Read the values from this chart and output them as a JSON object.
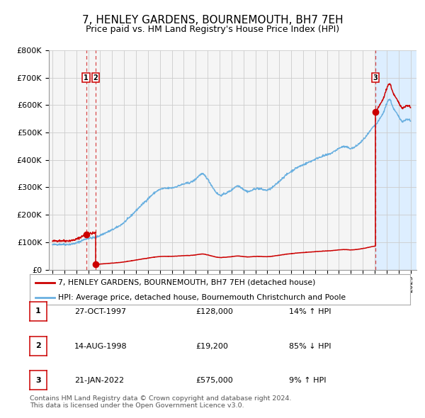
{
  "title": "7, HENLEY GARDENS, BOURNEMOUTH, BH7 7EH",
  "subtitle": "Price paid vs. HM Land Registry's House Price Index (HPI)",
  "title_fontsize": 11,
  "subtitle_fontsize": 9,
  "background_color": "#ffffff",
  "plot_bg_color": "#f5f5f5",
  "grid_color": "#cccccc",
  "ylim": [
    0,
    800000
  ],
  "yticks": [
    0,
    100000,
    200000,
    300000,
    400000,
    500000,
    600000,
    700000,
    800000
  ],
  "ytick_labels": [
    "£0",
    "£100K",
    "£200K",
    "£300K",
    "£400K",
    "£500K",
    "£600K",
    "£700K",
    "£800K"
  ],
  "xtick_years": [
    1995,
    1996,
    1997,
    1998,
    1999,
    2000,
    2001,
    2002,
    2003,
    2004,
    2005,
    2006,
    2007,
    2008,
    2009,
    2010,
    2011,
    2012,
    2013,
    2014,
    2015,
    2016,
    2017,
    2018,
    2019,
    2020,
    2021,
    2022,
    2023,
    2024,
    2025
  ],
  "sale1_date": 1997.82,
  "sale1_price": 128000,
  "sale2_date": 1998.62,
  "sale2_price": 19200,
  "sale3_date": 2022.055,
  "sale3_price": 575000,
  "red_line_color": "#cc0000",
  "blue_line_color": "#6ab0e0",
  "shade_color": "#ddeeff",
  "legend_entries": [
    "7, HENLEY GARDENS, BOURNEMOUTH, BH7 7EH (detached house)",
    "HPI: Average price, detached house, Bournemouth Christchurch and Poole"
  ],
  "table_rows": [
    {
      "num": "1",
      "date": "27-OCT-1997",
      "price": "£128,000",
      "hpi": "14% ↑ HPI"
    },
    {
      "num": "2",
      "date": "14-AUG-1998",
      "price": "£19,200",
      "hpi": "85% ↓ HPI"
    },
    {
      "num": "3",
      "date": "21-JAN-2022",
      "price": "£575,000",
      "hpi": "9% ↑ HPI"
    }
  ],
  "footer": "Contains HM Land Registry data © Crown copyright and database right 2024.\nThis data is licensed under the Open Government Licence v3.0."
}
